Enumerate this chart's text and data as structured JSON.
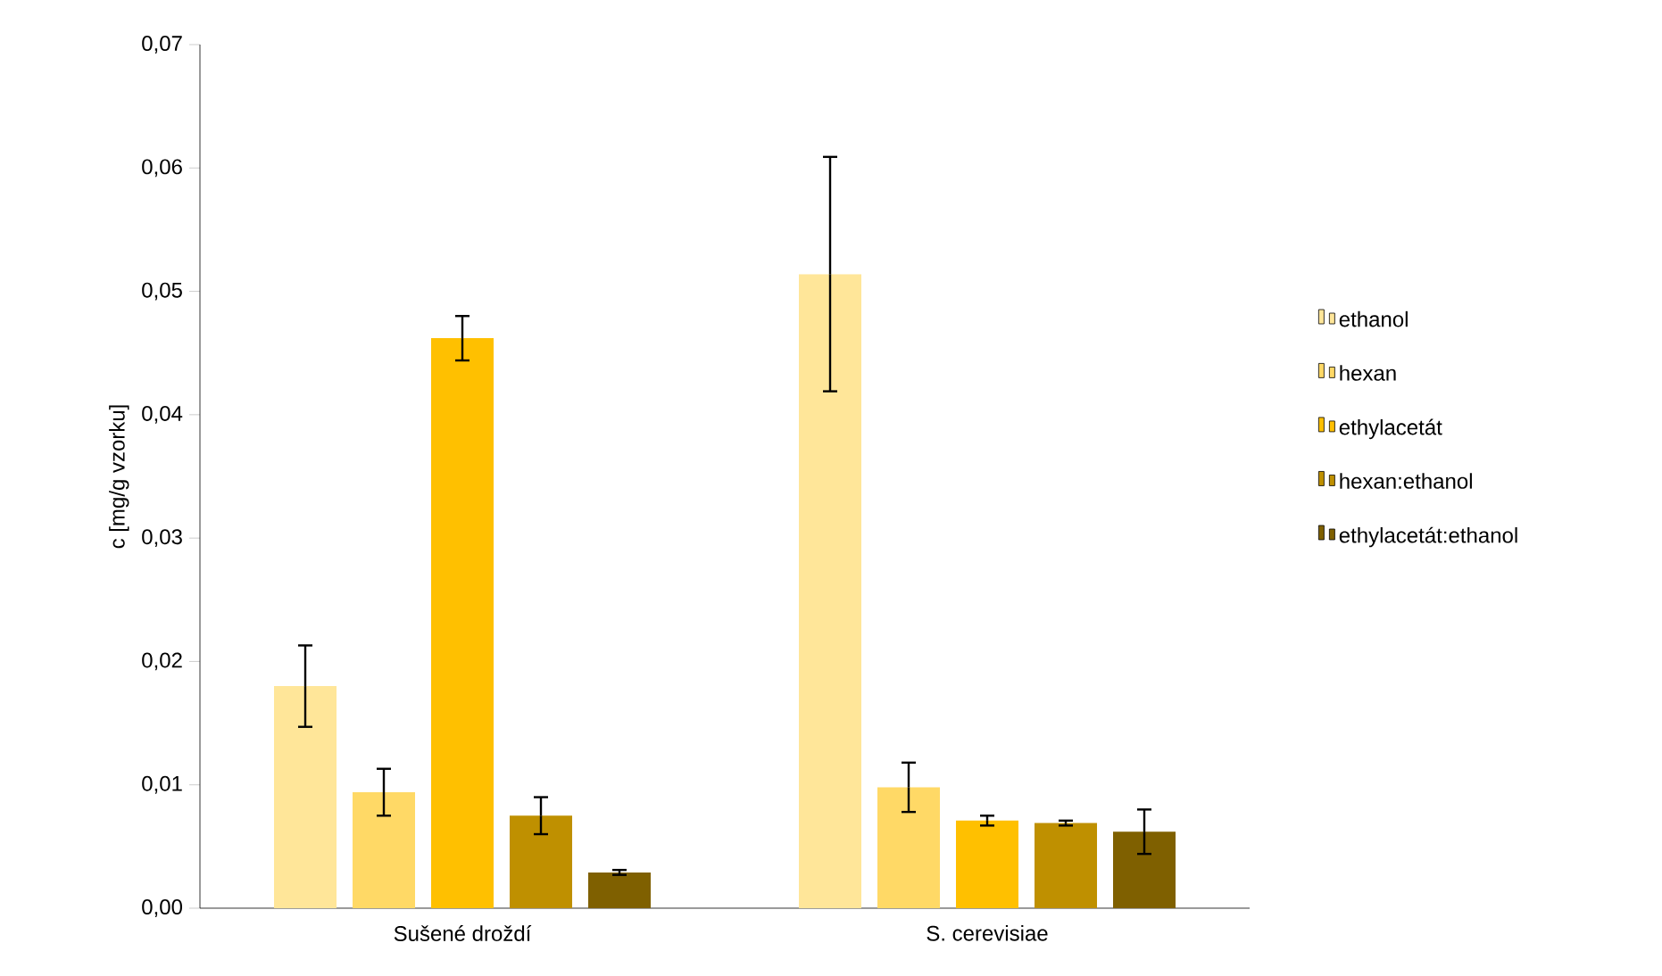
{
  "chart_data": {
    "type": "bar",
    "ylabel": "c [mg/g vzorku]",
    "categories": [
      "Sušené droždí",
      "S. cerevisiae"
    ],
    "series": [
      {
        "name": "ethanol",
        "color": "#ffe699",
        "values": [
          0.018,
          0.0514
        ],
        "errors": [
          0.0033,
          0.0095
        ]
      },
      {
        "name": "hexan",
        "color": "#ffd966",
        "values": [
          0.0094,
          0.0098
        ],
        "errors": [
          0.0019,
          0.002
        ]
      },
      {
        "name": "ethylacetát",
        "color": "#ffc000",
        "values": [
          0.0462,
          0.0071
        ],
        "errors": [
          0.0018,
          0.0004
        ]
      },
      {
        "name": "hexan:ethanol",
        "color": "#bf9000",
        "values": [
          0.0075,
          0.0069
        ],
        "errors": [
          0.0015,
          0.0002
        ]
      },
      {
        "name": "ethylacetát:ethanol",
        "color": "#7f6000",
        "values": [
          0.0029,
          0.0062
        ],
        "errors": [
          0.0002,
          0.0018
        ]
      }
    ],
    "ylim": [
      0,
      0.07
    ],
    "yticks": [
      {
        "value": 0,
        "label": "0,00"
      },
      {
        "value": 0.01,
        "label": "0,01"
      },
      {
        "value": 0.02,
        "label": "0,02"
      },
      {
        "value": 0.03,
        "label": "0,03"
      },
      {
        "value": 0.04,
        "label": "0,04"
      },
      {
        "value": 0.05,
        "label": "0,05"
      },
      {
        "value": 0.06,
        "label": "0,06"
      },
      {
        "value": 0.07,
        "label": "0,07"
      }
    ],
    "grid": false,
    "legend": "right"
  }
}
